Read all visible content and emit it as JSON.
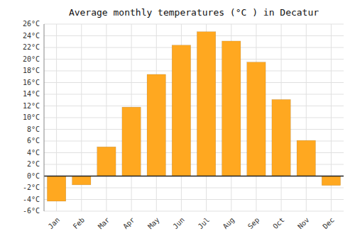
{
  "chart_data": {
    "type": "bar",
    "title": "Average monthly temperatures (°C ) in Decatur",
    "categories": [
      "Jan",
      "Feb",
      "Mar",
      "Apr",
      "May",
      "Jun",
      "Jul",
      "Aug",
      "Sep",
      "Oct",
      "Nov",
      "Dec"
    ],
    "values": [
      -4.3,
      -1.5,
      5.0,
      11.8,
      17.4,
      22.4,
      24.7,
      23.1,
      19.5,
      13.1,
      6.1,
      -1.6
    ],
    "color": "#FFA820",
    "ylim": [
      -6,
      26
    ],
    "yticks": [
      {
        "value": -6,
        "label": "-6°C"
      },
      {
        "value": -4,
        "label": "-4°C"
      },
      {
        "value": -2,
        "label": "-2°C"
      },
      {
        "value": 0,
        "label": "0°C"
      },
      {
        "value": 2,
        "label": "2°C"
      },
      {
        "value": 4,
        "label": "4°C"
      },
      {
        "value": 6,
        "label": "6°C"
      },
      {
        "value": 8,
        "label": "8°C"
      },
      {
        "value": 10,
        "label": "10°C"
      },
      {
        "value": 12,
        "label": "12°C"
      },
      {
        "value": 14,
        "label": "14°C"
      },
      {
        "value": 16,
        "label": "16°C"
      },
      {
        "value": 18,
        "label": "18°C"
      },
      {
        "value": 20,
        "label": "20°C"
      },
      {
        "value": 22,
        "label": "22°C"
      },
      {
        "value": 24,
        "label": "24°C"
      },
      {
        "value": 26,
        "label": "26°C"
      }
    ],
    "grid": true
  }
}
